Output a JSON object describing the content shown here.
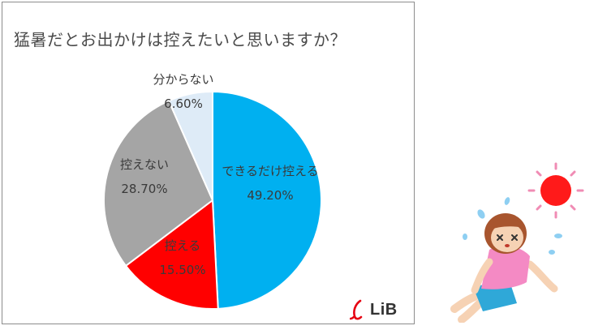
{
  "colors": {
    "frame_border": "#8c8c8c",
    "title_text": "#4a4a4a",
    "label_text": "#3a3a3a",
    "slice_separator": "#ffffff",
    "logo_red": "#e60012"
  },
  "logo": {
    "text": "LiB"
  },
  "chart_data": {
    "type": "pie",
    "title": "猛暑だとお出かけは控えたいと思いますか？",
    "start_angle_deg": 0,
    "direction": "clockwise",
    "slices": [
      {
        "label": "できるだけ控える",
        "value": 49.2,
        "display": "49.20%",
        "color": "#00b0f0"
      },
      {
        "label": "控える",
        "value": 15.5,
        "display": "15.50%",
        "color": "#ff0000"
      },
      {
        "label": "控えない",
        "value": 28.7,
        "display": "28.70%",
        "color": "#a5a5a5"
      },
      {
        "label": "分からない",
        "value": 6.6,
        "display": "6.60%",
        "color": "#deebf7"
      }
    ]
  }
}
